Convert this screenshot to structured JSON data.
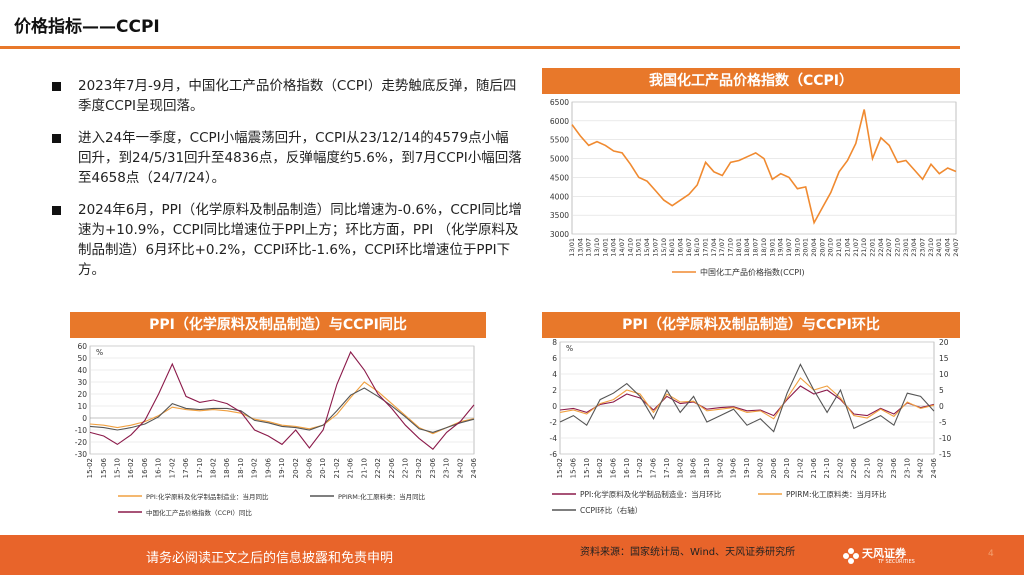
{
  "title": "价格指标——CCPI",
  "bullets": [
    "2023年7月-9月，中国化工产品价格指数（CCPI）走势触底反弹，随后四季度CCPI呈现回落。",
    "进入24年一季度，CCPI小幅震荡回升，CCPI从23/12/14的4579点小幅回升，到24/5/31回升至4836点，反弹幅度约5.6%，到7月CCPI小幅回落至4658点（24/7/24）。",
    "2024年6月，PPI（化学原料及制品制造）同比增速为-0.6%，CCPI同比增速为+10.9%，CCPI同比增速位于PPI上方；环比方面，PPI （化学原料及制品制造）6月环比+0.2%，CCPI环比-1.6%，CCPI环比增速位于PPI下方。"
  ],
  "footer": {
    "disclaimer": "请务必阅读正文之后的信息披露和免责申明",
    "source": "资料来源：国家统计局、Wind、天风证券研究所",
    "logo": "天风证券",
    "logo_sub": "TF SECURITIES",
    "page": "4"
  },
  "colors": {
    "accent": "#e8782a",
    "ppi": "#8b1a4a",
    "ppirm": "#f0a040",
    "ccpi": "#555555",
    "ccpi_main": "#f08a30",
    "band": "#e8642a"
  },
  "chart_data": [
    {
      "type": "line",
      "title": "我国化工产品价格指数（CCPI）",
      "x": [
        "13/01",
        "13/04",
        "13/07",
        "13/10",
        "14/01",
        "14/04",
        "14/07",
        "14/10",
        "15/01",
        "15/04",
        "15/07",
        "15/10",
        "16/01",
        "16/04",
        "16/07",
        "16/10",
        "17/01",
        "17/04",
        "17/07",
        "17/10",
        "18/01",
        "18/04",
        "18/07",
        "18/10",
        "19/01",
        "19/04",
        "19/07",
        "19/10",
        "20/01",
        "20/04",
        "20/07",
        "20/10",
        "21/01",
        "21/04",
        "21/07",
        "21/10",
        "22/01",
        "22/04",
        "22/07",
        "22/10",
        "23/01",
        "23/04",
        "23/07",
        "23/10",
        "24/01",
        "24/04",
        "24/07"
      ],
      "xticks": [
        "13/01",
        "13/04",
        "13/07",
        "13/10",
        "14/01",
        "14/04",
        "14/07",
        "14/10",
        "15/01",
        "15/04",
        "15/07",
        "15/10",
        "16/01",
        "16/04",
        "16/07",
        "16/10",
        "17/01",
        "17/04",
        "17/07",
        "17/10",
        "18/01",
        "18/04",
        "18/07",
        "18/10",
        "19/01",
        "19/04",
        "19/07",
        "19/10",
        "20/01",
        "20/04",
        "20/07",
        "20/10",
        "21/01",
        "21/04",
        "21/07",
        "21/10",
        "22/01",
        "22/04",
        "22/07",
        "22/10",
        "23/01",
        "23/04",
        "23/07",
        "23/10",
        "24/01",
        "24/04",
        "24/07"
      ],
      "ylim": [
        3000,
        6500
      ],
      "yticks": [
        3000,
        3500,
        4000,
        4500,
        5000,
        5500,
        6000,
        6500
      ],
      "series": [
        {
          "name": "中国化工产品价格指数(CCPI)",
          "values": [
            5900,
            5600,
            5350,
            5450,
            5350,
            5200,
            5150,
            4850,
            4500,
            4400,
            4150,
            3900,
            3750,
            3900,
            4050,
            4300,
            4900,
            4650,
            4550,
            4900,
            4950,
            5050,
            5150,
            5000,
            4450,
            4600,
            4500,
            4200,
            4250,
            3300,
            3700,
            4100,
            4650,
            4950,
            5400,
            6300,
            5000,
            5550,
            5350,
            4900,
            4950,
            4700,
            4450,
            4850,
            4600,
            4750,
            4658
          ]
        }
      ]
    },
    {
      "type": "line",
      "title": "PPI（化学原料及制品制造）与CCPI同比",
      "x": [
        "15-02",
        "15-06",
        "15-10",
        "16-02",
        "16-06",
        "16-10",
        "17-02",
        "17-06",
        "17-10",
        "18-02",
        "18-06",
        "18-10",
        "19-02",
        "19-06",
        "19-10",
        "20-02",
        "20-06",
        "20-10",
        "21-02",
        "21-06",
        "21-10",
        "22-02",
        "22-06",
        "22-10",
        "23-02",
        "23-06",
        "23-10",
        "24-02",
        "24-06"
      ],
      "xticks": [
        "15-02",
        "15-06",
        "15-10",
        "16-02",
        "16-06",
        "16-10",
        "17-02",
        "17-06",
        "17-10",
        "18-02",
        "18-06",
        "18-10",
        "19-02",
        "19-06",
        "19-10",
        "20-02",
        "20-06",
        "20-10",
        "21-02",
        "21-06",
        "21-10",
        "22-02",
        "22-06",
        "22-10",
        "23-02",
        "23-06",
        "23-10",
        "24-02",
        "24-06"
      ],
      "ylabel": "%",
      "ylim": [
        -30,
        60
      ],
      "yticks": [
        -30,
        -20,
        -10,
        0,
        10,
        20,
        30,
        40,
        50,
        60
      ],
      "series": [
        {
          "name": "PPI:化学原料及化学制品制造业：当月同比",
          "values": [
            -5,
            -6,
            -8,
            -6,
            -3,
            2,
            9,
            7,
            6,
            7,
            6,
            4,
            -1,
            -3,
            -6,
            -7,
            -9,
            -6,
            3,
            17,
            30,
            22,
            12,
            2,
            -8,
            -13,
            -8,
            -3,
            -0.6
          ]
        },
        {
          "name": "PPIRM:化工原料类：当月同比",
          "values": [
            -7,
            -8,
            -10,
            -8,
            -5,
            1,
            12,
            8,
            7,
            8,
            8,
            6,
            -2,
            -4,
            -7,
            -8,
            -10,
            -6,
            6,
            19,
            25,
            18,
            10,
            1,
            -9,
            -12,
            -8,
            -4,
            -1
          ]
        },
        {
          "name": "中国化工产品价格指数（CCPI）同比",
          "values": [
            -12,
            -15,
            -22,
            -14,
            -2,
            20,
            45,
            18,
            13,
            15,
            12,
            5,
            -10,
            -15,
            -22,
            -10,
            -25,
            -10,
            28,
            55,
            40,
            20,
            8,
            -6,
            -17,
            -26,
            -12,
            -3,
            10.9
          ]
        }
      ]
    },
    {
      "type": "line",
      "title": "PPI（化学原料及制品制造）与CCPI环比",
      "x": [
        "15-02",
        "15-06",
        "15-10",
        "16-02",
        "16-06",
        "16-10",
        "17-02",
        "17-06",
        "17-10",
        "18-02",
        "18-06",
        "18-10",
        "19-02",
        "19-06",
        "19-10",
        "20-02",
        "20-06",
        "20-10",
        "21-02",
        "21-06",
        "21-10",
        "22-02",
        "22-06",
        "22-10",
        "23-02",
        "23-06",
        "23-10",
        "24-02",
        "24-06"
      ],
      "xticks": [
        "15-02",
        "15-06",
        "15-10",
        "16-02",
        "16-06",
        "16-10",
        "17-02",
        "17-06",
        "17-10",
        "18-02",
        "18-06",
        "18-10",
        "19-02",
        "19-06",
        "19-10",
        "20-02",
        "20-06",
        "20-10",
        "21-02",
        "21-06",
        "21-10",
        "22-02",
        "22-06",
        "22-10",
        "23-02",
        "23-06",
        "23-10",
        "24-02",
        "24-06"
      ],
      "ylabel": "%",
      "ylim": [
        -6,
        8
      ],
      "yticks": [
        -6,
        -4,
        -2,
        0,
        2,
        4,
        6,
        8
      ],
      "y2lim": [
        -15,
        20
      ],
      "y2ticks": [
        -15,
        -10,
        -5,
        0,
        5,
        10,
        15,
        20
      ],
      "series": [
        {
          "name": "PPI:化学原料及化学制品制造业：当月环比",
          "axis": "left",
          "values": [
            -0.5,
            -0.3,
            -0.8,
            0.2,
            0.5,
            1.5,
            1.0,
            -0.5,
            1.2,
            0.3,
            0.5,
            -0.4,
            -0.2,
            -0.1,
            -0.6,
            -0.5,
            -1.2,
            0.8,
            2.5,
            1.5,
            2.0,
            0.8,
            -1.0,
            -1.2,
            -0.3,
            -1.0,
            0.4,
            -0.2,
            0.2
          ]
        },
        {
          "name": "PPIRM:化工原料类：当月环比",
          "axis": "left",
          "values": [
            -0.8,
            -0.5,
            -1.0,
            0.3,
            0.8,
            2.0,
            1.5,
            -0.8,
            1.5,
            0.5,
            0.6,
            -0.6,
            -0.4,
            -0.2,
            -0.8,
            -0.6,
            -1.6,
            1.0,
            3.5,
            2.0,
            2.5,
            1.0,
            -1.2,
            -1.5,
            -0.4,
            -1.3,
            0.5,
            -0.3,
            0.1
          ]
        },
        {
          "name": "CCPI环比（右轴）",
          "axis": "right",
          "values": [
            -5,
            -3,
            -6,
            2,
            4,
            7,
            3,
            -4,
            5,
            -2,
            3,
            -5,
            -3,
            -1,
            -6,
            -4,
            -8,
            4,
            13,
            5,
            -2,
            5,
            -7,
            -5,
            -3,
            -6,
            4,
            3,
            -1.6
          ]
        }
      ]
    }
  ]
}
